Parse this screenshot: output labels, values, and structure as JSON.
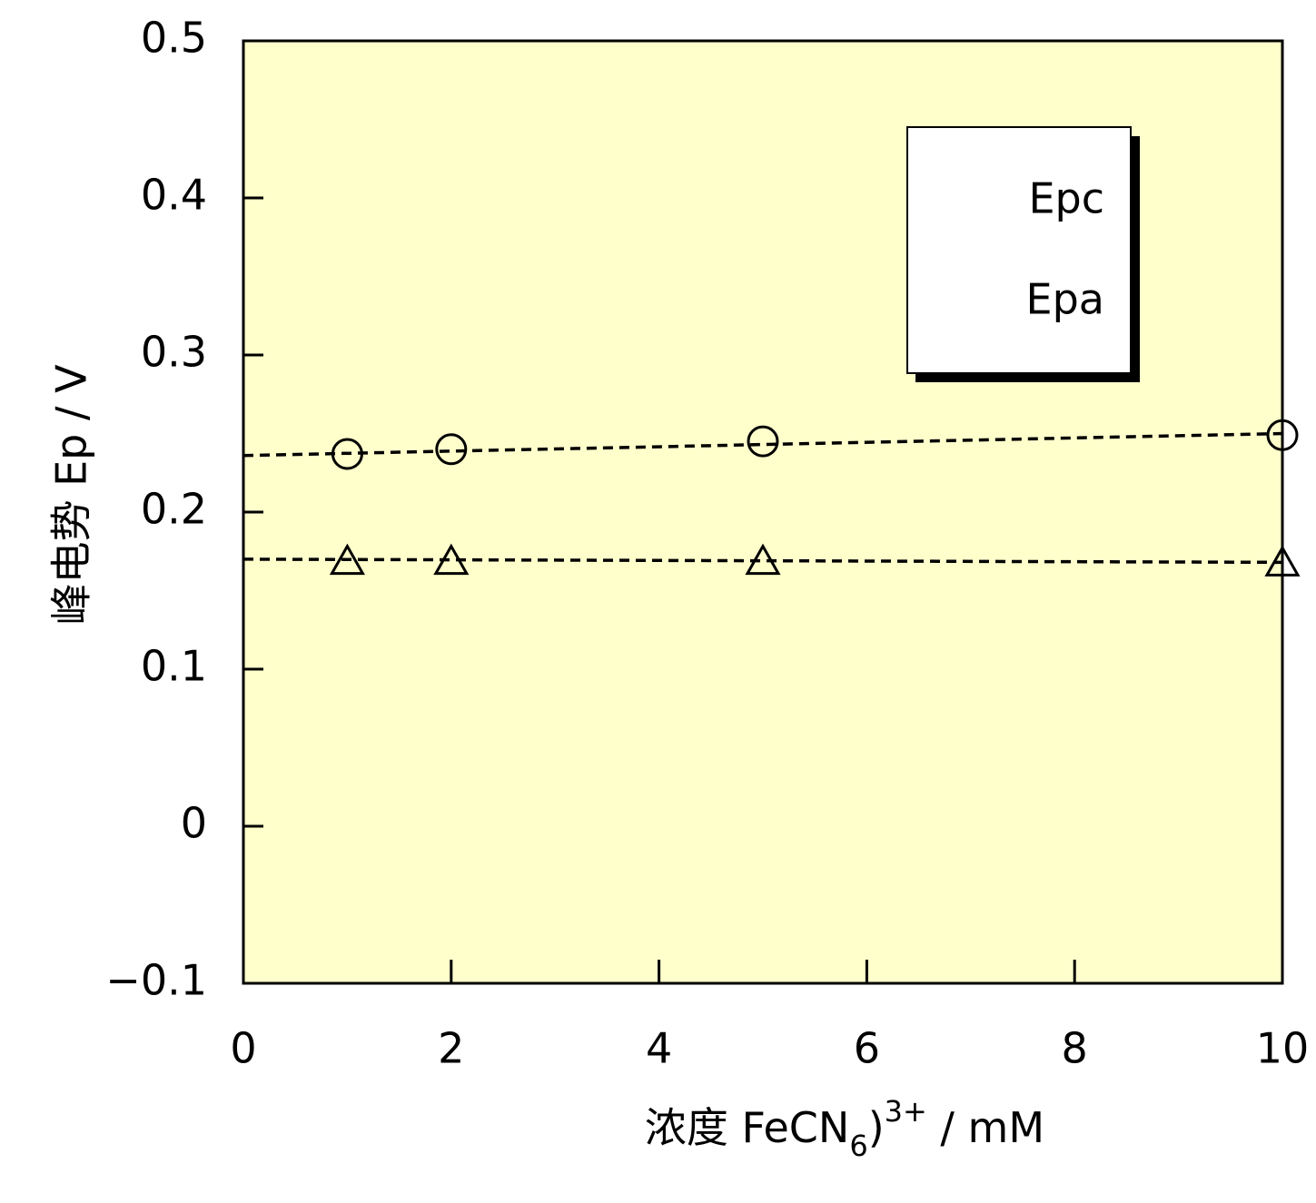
{
  "chart_data": {
    "type": "scatter",
    "xlabel": [
      {
        "text": "浓度 FeCN"
      },
      {
        "text": "6",
        "shift": "sub"
      },
      {
        "text": ")"
      },
      {
        "text": "3+",
        "shift": "super"
      },
      {
        "text": " / mM"
      }
    ],
    "ylabel": "峰电势 Ep / V",
    "xlim": [
      0,
      10
    ],
    "xticks": [
      0,
      2,
      4,
      6,
      8,
      10
    ],
    "ylim": [
      -0.1,
      0.5
    ],
    "yticks": [
      {
        "value": -0.1,
        "label": "−0.1"
      },
      0,
      0.1,
      0.2,
      0.3,
      0.4,
      0.5
    ],
    "plot_background": "#ffffcc",
    "legend": "upper right",
    "series": [
      {
        "name": "Epc",
        "marker": "circle",
        "color": "#000000",
        "x": [
          1,
          2,
          5,
          10
        ],
        "values": [
          0.237,
          0.24,
          0.245,
          0.249
        ],
        "trend": {
          "x": [
            0,
            10
          ],
          "values": [
            0.236,
            0.25
          ]
        }
      },
      {
        "name": "Epa",
        "marker": "triangle",
        "color": "#000000",
        "x": [
          1,
          2,
          5,
          10
        ],
        "values": [
          0.169,
          0.169,
          0.169,
          0.168
        ],
        "trend": {
          "x": [
            0,
            10
          ],
          "values": [
            0.17,
            0.168
          ]
        }
      }
    ]
  }
}
